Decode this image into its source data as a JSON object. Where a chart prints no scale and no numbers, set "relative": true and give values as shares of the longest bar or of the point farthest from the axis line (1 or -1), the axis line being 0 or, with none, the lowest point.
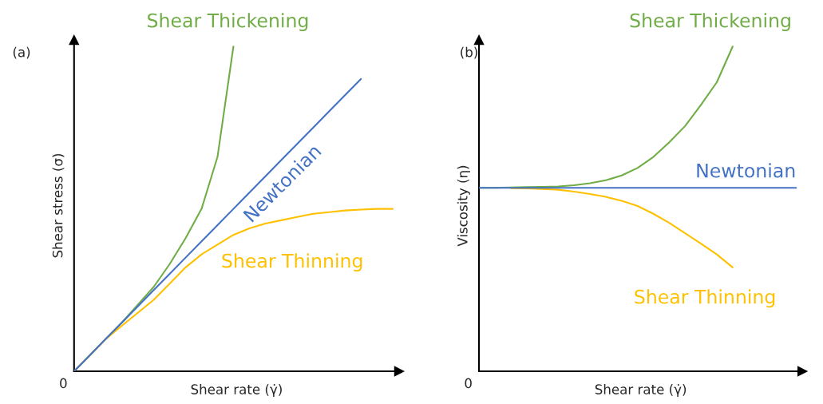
{
  "chart_data": [
    {
      "type": "line",
      "title": "(a)",
      "xlabel": "Shear rate (γ̇)",
      "ylabel": "Shear stress (σ)",
      "relative": true,
      "annotations": [
        "0"
      ],
      "categories": [
        null,
        null,
        null,
        null,
        null,
        null,
        null,
        null,
        null,
        null,
        null,
        null,
        null,
        null,
        null,
        null,
        null,
        null,
        null,
        null,
        null
      ],
      "series": [
        {
          "name": "Shear Thickening",
          "color": "#70ad47",
          "values": [
            0,
            0.05,
            0.1,
            0.15,
            0.205,
            0.26,
            0.33,
            0.41,
            0.5,
            0.66,
            1.0,
            null,
            null,
            null,
            null,
            null,
            null,
            null,
            null,
            null,
            null
          ]
        },
        {
          "name": "Newtonian",
          "color": "#4472c4",
          "values": [
            0,
            0.05,
            0.1,
            0.15,
            0.2,
            0.25,
            0.3,
            0.35,
            0.4,
            0.45,
            0.5,
            0.55,
            0.6,
            0.65,
            0.7,
            0.75,
            0.8,
            0.85,
            0.9,
            null,
            null
          ]
        },
        {
          "name": "Shear Thinning",
          "color": "#ffc000",
          "values": [
            0,
            0.05,
            0.1,
            0.14,
            0.18,
            0.22,
            0.27,
            0.32,
            0.36,
            0.39,
            0.42,
            0.44,
            0.455,
            0.465,
            0.475,
            0.485,
            0.49,
            0.495,
            0.498,
            0.5,
            0.5
          ]
        }
      ]
    },
    {
      "type": "line",
      "title": "(b)",
      "xlabel": "Shear rate (γ̇)",
      "ylabel": "Viscosity (η)",
      "relative": true,
      "annotations": [
        "0"
      ],
      "categories": [
        null,
        null,
        null,
        null,
        null,
        null,
        null,
        null,
        null,
        null,
        null,
        null,
        null,
        null,
        null,
        null,
        null,
        null,
        null,
        null,
        null
      ],
      "series": [
        {
          "name": "Shear Thickening",
          "color": "#70ad47",
          "values": [
            0.565,
            0.565,
            0.566,
            0.567,
            0.568,
            0.569,
            0.573,
            0.579,
            0.588,
            0.603,
            0.626,
            0.66,
            0.705,
            0.755,
            0.82,
            0.89,
            1.0,
            null,
            null,
            null,
            null
          ]
        },
        {
          "name": "Newtonian",
          "color": "#4472c4",
          "values": [
            0.565,
            0.565,
            0.565,
            0.565,
            0.565,
            0.565,
            0.565,
            0.565,
            0.565,
            0.565,
            0.565,
            0.565,
            0.565,
            0.565,
            0.565,
            0.565,
            0.565,
            0.565,
            0.565,
            0.565,
            0.565
          ]
        },
        {
          "name": "Shear Thinning",
          "color": "#ffc000",
          "values": [
            null,
            null,
            0.564,
            0.563,
            0.561,
            0.559,
            0.553,
            0.546,
            0.537,
            0.525,
            0.509,
            0.485,
            0.457,
            0.425,
            0.393,
            0.36,
            0.32,
            null,
            null,
            null,
            null
          ]
        }
      ]
    }
  ]
}
